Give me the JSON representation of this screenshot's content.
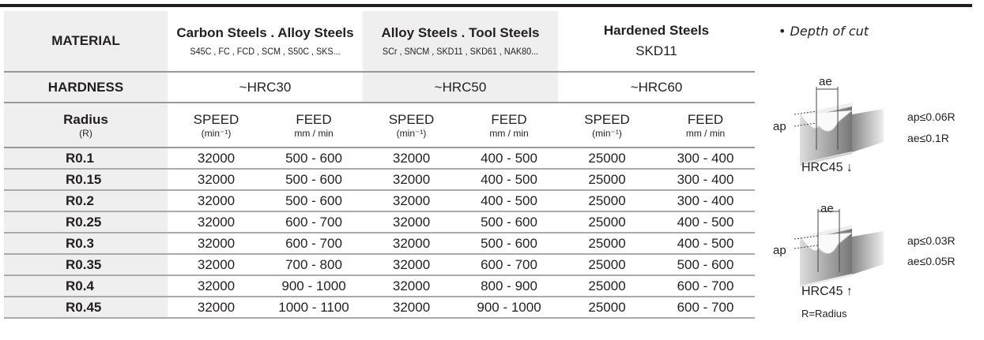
{
  "header": {
    "material_label": "MATERIAL",
    "hardness_label": "HARDNESS",
    "radius_label": "Radius",
    "radius_sub": "(R)"
  },
  "materials": [
    {
      "title": "Carbon Steels . Alloy Steels",
      "grades": "S45C , FC , FCD , SCM , S50C , SKS...",
      "hardness": "~HRC30"
    },
    {
      "title": "Alloy  Steels . Tool Steels",
      "grades": "SCr , SNCM , SKD11 , SKD61 , NAK80...",
      "hardness": "~HRC50"
    },
    {
      "title": "Hardened Steels",
      "grades": "SKD11",
      "hardness": "~HRC60"
    }
  ],
  "units": {
    "speed": "SPEED",
    "speed_unit": "(min⁻¹)",
    "feed": "FEED",
    "feed_unit": "mm / min"
  },
  "rows": [
    {
      "r": "R0.1",
      "v": [
        "32000",
        "500 - 600",
        "32000",
        "400 - 500",
        "25000",
        "300 - 400"
      ]
    },
    {
      "r": "R0.15",
      "v": [
        "32000",
        "500 - 600",
        "32000",
        "400 - 500",
        "25000",
        "300 - 400"
      ]
    },
    {
      "r": "R0.2",
      "v": [
        "32000",
        "500 - 600",
        "32000",
        "400 - 500",
        "25000",
        "300 - 400"
      ]
    },
    {
      "r": "R0.25",
      "v": [
        "32000",
        "600 - 700",
        "32000",
        "500 - 600",
        "25000",
        "400 - 500"
      ]
    },
    {
      "r": "R0.3",
      "v": [
        "32000",
        "600 - 700",
        "32000",
        "500 - 600",
        "25000",
        "400 - 500"
      ]
    },
    {
      "r": "R0.35",
      "v": [
        "32000",
        "700 - 800",
        "32000",
        "600 - 700",
        "25000",
        "500 - 600"
      ]
    },
    {
      "r": "R0.4",
      "v": [
        "32000",
        "900 - 1000",
        "32000",
        "800 - 900",
        "25000",
        "600 - 700"
      ]
    },
    {
      "r": "R0.45",
      "v": [
        "32000",
        "1000 - 1100",
        "32000",
        "900 - 1000",
        "25000",
        "600 - 700"
      ]
    }
  ],
  "depth": {
    "title": "•  Depth of cut",
    "d1": {
      "ae": "ae",
      "ap": "ap",
      "ap_limit": "ap≤0.06R",
      "ae_limit": "ae≤0.1R",
      "hrc": "HRC45 ↓"
    },
    "d2": {
      "ae": "ae",
      "ap": "ap",
      "ap_limit": "ap≤0.03R",
      "ae_limit": "ae≤0.05R",
      "hrc": "HRC45 ↑"
    },
    "note": "R=Radius"
  }
}
